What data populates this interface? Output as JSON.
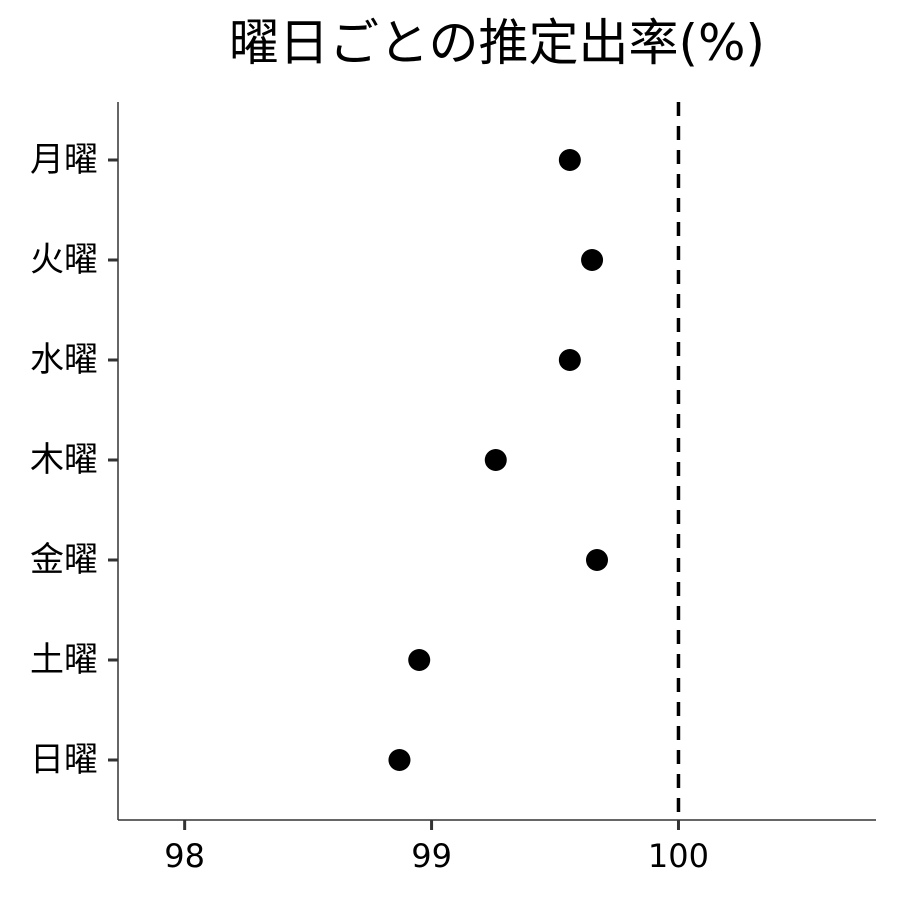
{
  "chart_data": {
    "type": "scatter",
    "title": "曜日ごとの推定出率(%)",
    "xlabel": "",
    "ylabel": "",
    "categories": [
      "月曜",
      "火曜",
      "水曜",
      "木曜",
      "金曜",
      "土曜",
      "日曜"
    ],
    "values": [
      99.56,
      99.65,
      99.56,
      99.26,
      99.67,
      98.95,
      98.87
    ],
    "xlim": [
      97.73,
      100.8
    ],
    "xticks": [
      98,
      99,
      100
    ],
    "xtick_labels": [
      "98",
      "99",
      "100"
    ],
    "reference_line": {
      "x": 100,
      "style": "dashed"
    },
    "grid": false,
    "legend": "none",
    "colors": {
      "points": "#000000",
      "axis": "#333333",
      "reference_line": "#000000"
    }
  }
}
